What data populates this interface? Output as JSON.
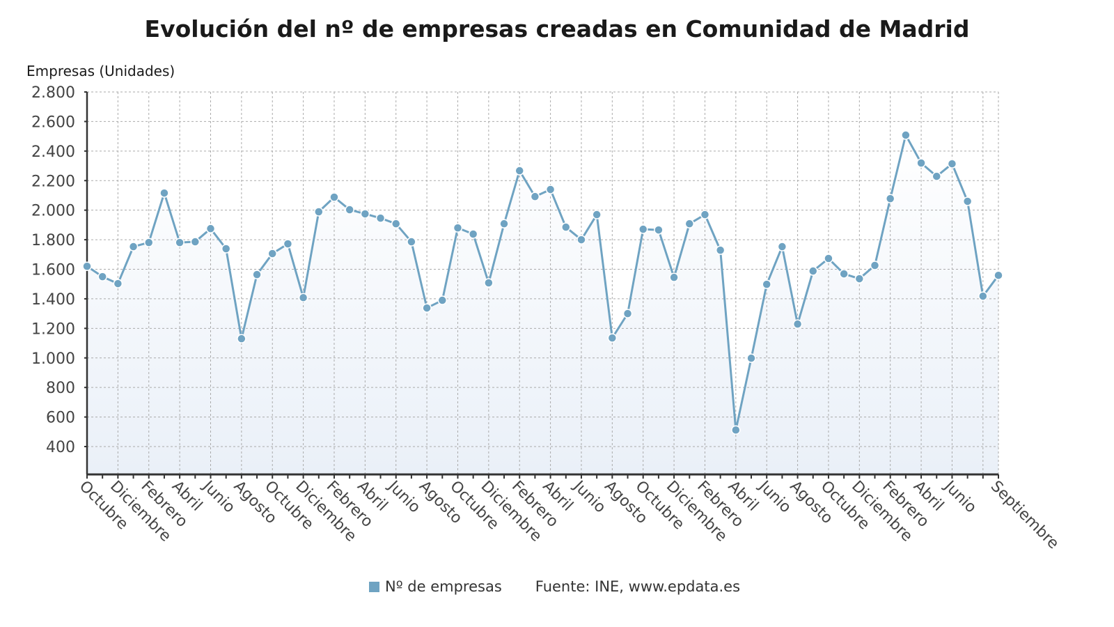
{
  "chart_data": {
    "type": "line",
    "title": "Evolución del nº de empresas creadas en Comunidad de Madrid",
    "ylabel": "Empresas (Unidades)",
    "xlabel": "",
    "ylim": [
      210,
      2800
    ],
    "yticks": [
      400,
      600,
      800,
      1000,
      1200,
      1400,
      1600,
      1800,
      2000,
      2200,
      2400,
      2600,
      2800
    ],
    "ytick_labels": [
      "400",
      "600",
      "800",
      "1.000",
      "1.200",
      "1.400",
      "1.600",
      "1.800",
      "2.000",
      "2.200",
      "2.400",
      "2.600",
      "2.800"
    ],
    "xtick_labels": [
      "Octubre",
      "Diciembre",
      "Febrero",
      "Abril",
      "Junio",
      "Agosto",
      "Octubre",
      "Diciembre",
      "Febrero",
      "Abril",
      "Junio",
      "Agosto",
      "Octubre",
      "Diciembre",
      "Febrero",
      "Abril",
      "Junio",
      "Agosto",
      "Octubre",
      "Diciembre",
      "Febrero",
      "Abril",
      "Junio",
      "Agosto",
      "Octubre",
      "Diciembre",
      "Febrero",
      "Abril",
      "Junio",
      "Septiembre"
    ],
    "xtick_positions": [
      0,
      2,
      4,
      6,
      8,
      10,
      12,
      14,
      16,
      18,
      20,
      22,
      24,
      26,
      28,
      30,
      32,
      34,
      36,
      38,
      40,
      42,
      44,
      46,
      48,
      50,
      52,
      54,
      56,
      59
    ],
    "grid": true,
    "legend_position": "bottom",
    "series": [
      {
        "name": "Nº de empresas",
        "color": "#6fa3c2",
        "values": [
          1620,
          1550,
          1503,
          1753,
          1781,
          2116,
          1781,
          1786,
          1875,
          1739,
          1130,
          1564,
          1706,
          1772,
          1408,
          1989,
          2088,
          2003,
          1975,
          1946,
          1908,
          1786,
          1338,
          1390,
          1880,
          1838,
          1508,
          1908,
          2267,
          2092,
          2140,
          1885,
          1800,
          1970,
          1135,
          1300,
          1871,
          1866,
          1545,
          1908,
          1970,
          1729,
          512,
          998,
          1498,
          1753,
          1229,
          1588,
          1673,
          1569,
          1536,
          1626,
          2078,
          2508,
          2319,
          2229,
          2314,
          2060,
          1418,
          1559
        ]
      }
    ]
  },
  "source": "Fuente: INE, www.epdata.es"
}
